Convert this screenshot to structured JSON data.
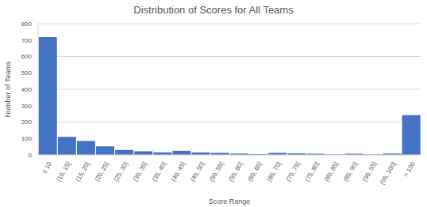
{
  "chart_data": {
    "type": "bar",
    "title": "Distribution of Scores for All Teams",
    "x_label": "Score Range",
    "y_label": "Number of Teams",
    "categories": [
      "≤ 10",
      "(10, 15]",
      "(15, 20]",
      "(20, 25]",
      "(25, 30]",
      "(30, 35]",
      "(35, 40]",
      "(40, 45]",
      "(45, 50]",
      "(50, 55]",
      "(55, 60]",
      "(60, 65]",
      "(65, 70]",
      "(70, 75]",
      "(75, 80]",
      "(80, 85]",
      "(85, 90]",
      "(90, 95]",
      "(95, 100]",
      "> 100"
    ],
    "values": [
      718,
      110,
      85,
      52,
      30,
      22,
      15,
      25,
      15,
      12,
      8,
      5,
      12,
      9,
      7,
      3,
      7,
      3,
      8,
      242
    ],
    "color": "#4472c4",
    "ylim": [
      0,
      800
    ],
    "yticks": [
      0,
      100,
      200,
      300,
      400,
      500,
      600,
      700,
      800
    ],
    "grid": true
  }
}
